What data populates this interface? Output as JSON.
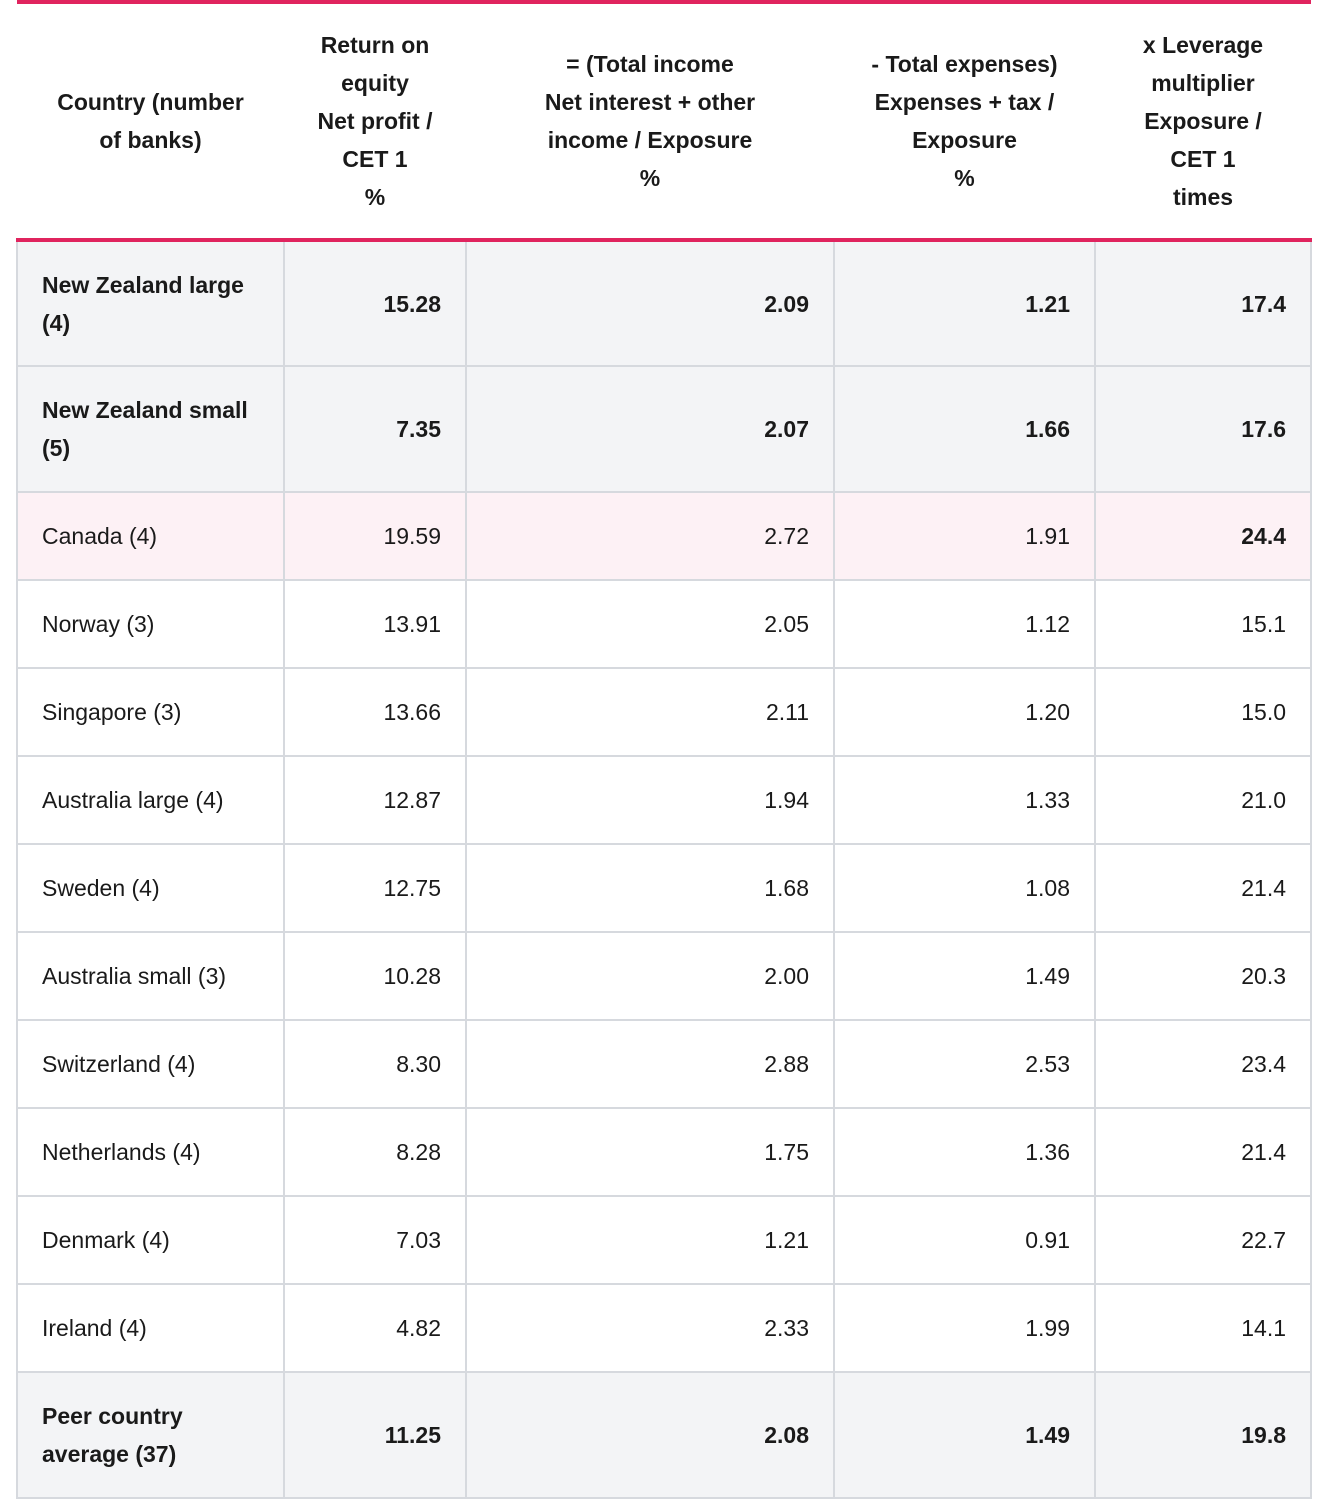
{
  "headers": [
    [
      "Country (number",
      "of banks)"
    ],
    [
      "Return on",
      "equity",
      "Net profit /",
      "CET 1",
      "%"
    ],
    [
      "= (Total income",
      "Net interest + other",
      "income / Exposure",
      "%"
    ],
    [
      "- Total expenses)",
      "Expenses + tax /",
      "Exposure",
      "%"
    ],
    [
      "x Leverage",
      "multiplier",
      "Exposure /",
      "CET 1",
      "times"
    ]
  ],
  "rows": [
    {
      "country": "New Zealand large (4)",
      "roe": "15.28",
      "income": "2.09",
      "expenses": "1.21",
      "leverage": "17.4",
      "style": "bold"
    },
    {
      "country": "New Zealand small (5)",
      "roe": "7.35",
      "income": "2.07",
      "expenses": "1.66",
      "leverage": "17.6",
      "style": "bold"
    },
    {
      "country": "Canada (4)",
      "roe": "19.59",
      "income": "2.72",
      "expenses": "1.91",
      "leverage": "24.4",
      "style": "highlight"
    },
    {
      "country": "Norway (3)",
      "roe": "13.91",
      "income": "2.05",
      "expenses": "1.12",
      "leverage": "15.1",
      "style": "normal"
    },
    {
      "country": "Singapore (3)",
      "roe": "13.66",
      "income": "2.11",
      "expenses": "1.20",
      "leverage": "15.0",
      "style": "normal"
    },
    {
      "country": "Australia large (4)",
      "roe": "12.87",
      "income": "1.94",
      "expenses": "1.33",
      "leverage": "21.0",
      "style": "normal"
    },
    {
      "country": "Sweden (4)",
      "roe": "12.75",
      "income": "1.68",
      "expenses": "1.08",
      "leverage": "21.4",
      "style": "normal"
    },
    {
      "country": "Australia small (3)",
      "roe": "10.28",
      "income": "2.00",
      "expenses": "1.49",
      "leverage": "20.3",
      "style": "normal"
    },
    {
      "country": "Switzerland (4)",
      "roe": "8.30",
      "income": "2.88",
      "expenses": "2.53",
      "leverage": "23.4",
      "style": "normal"
    },
    {
      "country": "Netherlands (4)",
      "roe": "8.28",
      "income": "1.75",
      "expenses": "1.36",
      "leverage": "21.4",
      "style": "normal"
    },
    {
      "country": "Denmark (4)",
      "roe": "7.03",
      "income": "1.21",
      "expenses": "0.91",
      "leverage": "22.7",
      "style": "normal"
    },
    {
      "country": "Ireland (4)",
      "roe": "4.82",
      "income": "2.33",
      "expenses": "1.99",
      "leverage": "14.1",
      "style": "normal"
    },
    {
      "country": "Peer country average (37)",
      "roe": "11.25",
      "income": "2.08",
      "expenses": "1.49",
      "leverage": "19.8",
      "style": "bold"
    }
  ],
  "colors": {
    "accent_rule": "#e0245e",
    "highlight_row": "#fdf1f5",
    "bold_row_bg": "#f3f4f6",
    "border": "#d6d9de"
  }
}
